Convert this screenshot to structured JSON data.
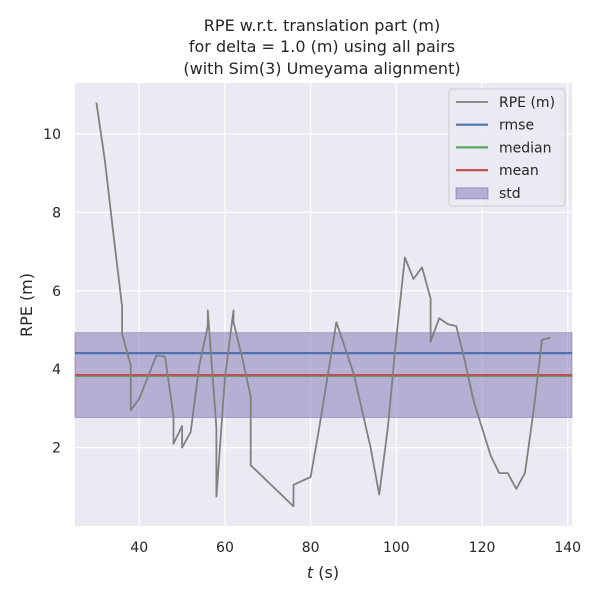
{
  "chart_data": {
    "type": "line",
    "title_lines": [
      "RPE w.r.t. translation part (m)",
      "for delta = 1.0 (m) using all pairs",
      "(with Sim(3) Umeyama alignment)"
    ],
    "xlabel_var": "t",
    "xlabel_unit": "(s)",
    "ylabel": "RPE (m)",
    "xlim": [
      25,
      141
    ],
    "ylim": [
      0.0,
      11.3
    ],
    "xticks": [
      40,
      60,
      80,
      100,
      120,
      140
    ],
    "yticks": [
      2,
      4,
      6,
      8,
      10
    ],
    "grid": true,
    "legend_position": "top-right",
    "series": [
      {
        "name": "RPE (m)",
        "color": "#808080",
        "x": [
          30,
          32,
          34,
          36,
          36,
          38,
          38,
          38,
          40,
          42,
          44,
          46,
          48,
          48,
          48,
          50,
          50,
          52,
          54,
          56,
          56,
          58,
          58,
          60,
          62,
          62,
          64,
          66,
          66,
          76,
          76,
          80,
          82,
          86,
          90,
          94,
          96,
          98,
          100,
          102,
          104,
          106,
          108,
          108,
          110,
          112,
          114,
          116,
          118,
          122,
          124,
          126,
          128,
          130,
          132,
          134,
          136
        ],
        "y": [
          10.8,
          9.3,
          7.4,
          5.6,
          4.9,
          4.1,
          3.6,
          2.95,
          3.25,
          3.8,
          4.35,
          4.32,
          2.8,
          2.1,
          2.1,
          2.55,
          2.0,
          2.4,
          4.1,
          5.1,
          5.5,
          2.5,
          0.75,
          3.8,
          5.5,
          5.2,
          4.3,
          3.3,
          1.55,
          0.5,
          1.05,
          1.25,
          2.5,
          5.2,
          3.9,
          2.0,
          0.8,
          2.5,
          4.8,
          6.85,
          6.3,
          6.6,
          5.8,
          4.7,
          5.3,
          5.15,
          5.1,
          4.2,
          3.2,
          1.8,
          1.35,
          1.35,
          0.95,
          1.35,
          2.9,
          4.75,
          4.8
        ]
      },
      {
        "name": "rmse",
        "color": "#4c72b0",
        "value": 4.41
      },
      {
        "name": "median",
        "color": "#55a868",
        "value": 3.83
      },
      {
        "name": "mean",
        "color": "#c44e52",
        "value": 3.85
      },
      {
        "name": "std",
        "color": "#8172b3",
        "range": [
          2.77,
          4.93
        ]
      }
    ],
    "colors": {
      "plot_background": "#eaeaf2",
      "grid": "#ffffff",
      "std_fill": "#8172b3"
    }
  }
}
